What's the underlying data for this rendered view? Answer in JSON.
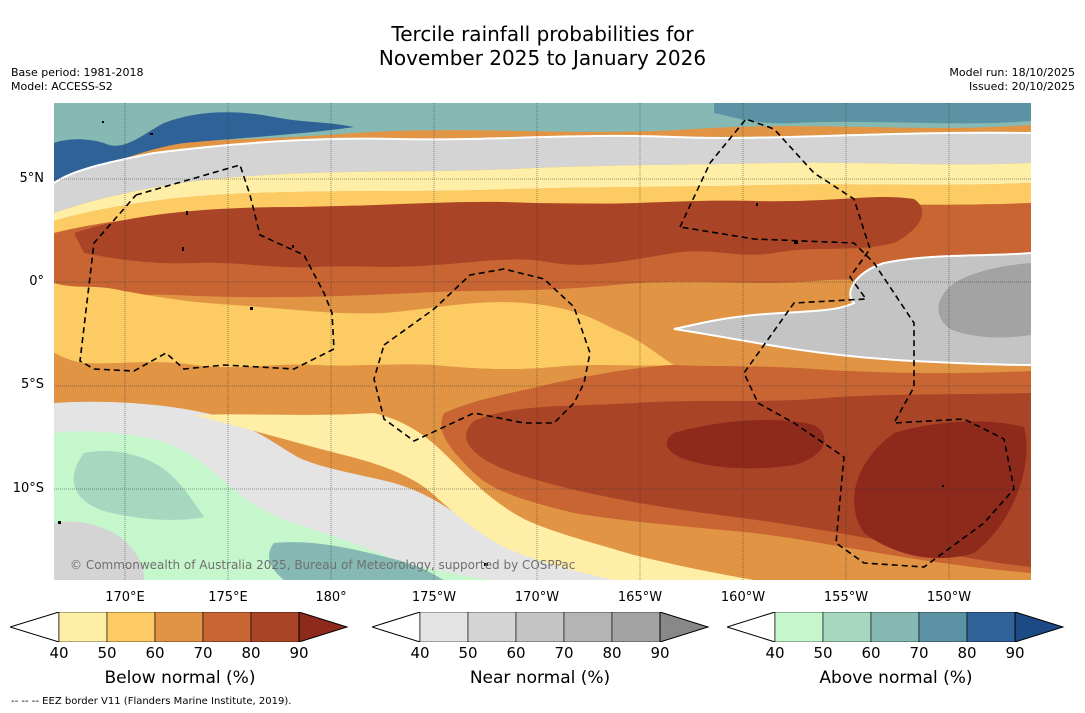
{
  "title": {
    "line1": "Tercile rainfall probabilities for",
    "line2": "November 2025 to January 2026"
  },
  "meta": {
    "base_period": "Base period: 1981-2018",
    "model": "Model: ACCESS-S2",
    "model_run": "Model run: 18/10/2025",
    "issued": "Issued: 20/10/2025"
  },
  "map": {
    "lat_labels": [
      "5°N",
      "0°",
      "5°S",
      "10°S"
    ],
    "lon_labels": [
      "170°E",
      "175°E",
      "180°",
      "175°W",
      "170°W",
      "165°W",
      "160°W",
      "155°W",
      "150°W"
    ],
    "copyright": "© Commonwealth of Australia 2025, Bureau of Meteorology, supported by COSPPac"
  },
  "colorbars": [
    {
      "title": "Below normal (%)",
      "ticks": [
        "40",
        "50",
        "60",
        "70",
        "80",
        "90"
      ],
      "colors": [
        "#ffeea6",
        "#fdcb63",
        "#e19444",
        "#c86532",
        "#aa4426",
        "#8e2a1c"
      ]
    },
    {
      "title": "Near normal (%)",
      "ticks": [
        "40",
        "50",
        "60",
        "70",
        "80",
        "90"
      ],
      "colors": [
        "#e4e4e4",
        "#d4d4d4",
        "#c4c4c4",
        "#b4b4b4",
        "#a3a3a3",
        "#888888"
      ]
    },
    {
      "title": "Above normal (%)",
      "ticks": [
        "40",
        "50",
        "60",
        "70",
        "80",
        "90"
      ],
      "colors": [
        "#c6f7cc",
        "#a5d8bf",
        "#86b9b3",
        "#5b92a4",
        "#2f6297",
        "#1b4a85"
      ]
    }
  ],
  "footnote": "-- -- -- EEZ border V11 (Flanders Marine Institute, 2019)."
}
